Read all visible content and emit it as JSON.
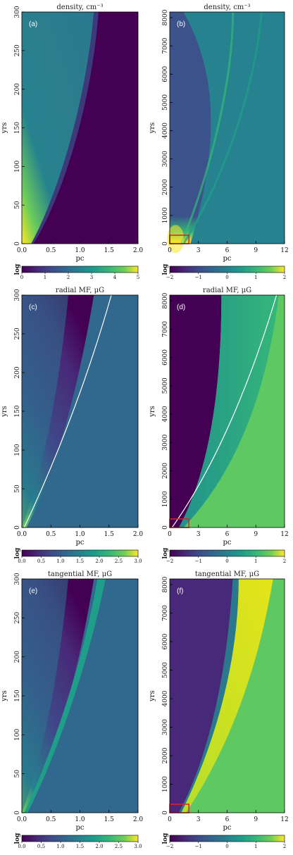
{
  "panels": [
    {
      "label": "(a)",
      "title": "density, cm⁻³",
      "xticks": [
        "0.0",
        "0.5",
        "1.0",
        "1.5",
        "2.0"
      ],
      "yticks": [
        "0",
        "50",
        "100",
        "150",
        "200",
        "250",
        "300"
      ],
      "xlabel": "pc",
      "ylabel": "yrs",
      "cb_label": "log",
      "cb_ticks": [
        "0",
        "1",
        "2",
        "3",
        "4",
        "5"
      ]
    },
    {
      "label": "(b)",
      "title": "density, cm⁻³",
      "xticks": [
        "0",
        "3",
        "6",
        "9",
        "12"
      ],
      "yticks": [
        "0",
        "1000",
        "2000",
        "3000",
        "4000",
        "5000",
        "6000",
        "7000",
        "8000"
      ],
      "xlabel": "pc",
      "ylabel": "yrs",
      "cb_label": "log",
      "cb_ticks": [
        "−2",
        "−1",
        "0",
        "1",
        "2"
      ]
    },
    {
      "label": "(c)",
      "title": "radial MF, μG",
      "xticks": [
        "0.0",
        "0.5",
        "1.0",
        "1.5",
        "2.0"
      ],
      "yticks": [
        "0",
        "50",
        "100",
        "150",
        "200",
        "250",
        "300"
      ],
      "xlabel": "pc",
      "ylabel": "yrs",
      "cb_label": "log",
      "cb_ticks": [
        "0.0",
        "0.5",
        "1.0",
        "1.5",
        "2.0",
        "2.5",
        "3.0"
      ]
    },
    {
      "label": "(d)",
      "title": "radial MF, μG",
      "xticks": [
        "0",
        "3",
        "6",
        "9",
        "12"
      ],
      "yticks": [
        "0",
        "1000",
        "2000",
        "3000",
        "4000",
        "5000",
        "6000",
        "7000",
        "8000"
      ],
      "xlabel": "pc",
      "ylabel": "yrs",
      "cb_label": "log",
      "cb_ticks": [
        "−2",
        "−1",
        "0",
        "1",
        "2"
      ]
    },
    {
      "label": "(e)",
      "title": "tangential MF, μG",
      "xticks": [
        "0.0",
        "0.5",
        "1.0",
        "1.5",
        "2.0"
      ],
      "yticks": [
        "0",
        "50",
        "100",
        "150",
        "200",
        "250",
        "300"
      ],
      "xlabel": "pc",
      "ylabel": "yrs",
      "cb_label": "log",
      "cb_ticks": [
        "0.0",
        "0.5",
        "1.0",
        "1.5",
        "2.0",
        "2.5",
        "3.0"
      ]
    },
    {
      "label": "(f)",
      "title": "tangential MF, μG",
      "xticks": [
        "0",
        "3",
        "6",
        "9",
        "12"
      ],
      "yticks": [
        "0",
        "1000",
        "2000",
        "3000",
        "4000",
        "5000",
        "6000",
        "7000",
        "8000"
      ],
      "xlabel": "pc",
      "ylabel": "yrs",
      "cb_label": "log",
      "cb_ticks": [
        "−2",
        "−1",
        "0",
        "1",
        "2"
      ]
    }
  ],
  "chart_data": [
    {
      "type": "heatmap",
      "panel": "(a)",
      "title": "density, cm⁻³",
      "xlabel": "pc",
      "ylabel": "yrs",
      "xlim": [
        0,
        2
      ],
      "ylim": [
        0,
        300
      ],
      "colorbar": {
        "label": "log",
        "range": [
          0,
          5
        ]
      }
    },
    {
      "type": "heatmap",
      "panel": "(b)",
      "title": "density, cm⁻³",
      "xlabel": "pc",
      "ylabel": "yrs",
      "xlim": [
        0,
        12
      ],
      "ylim": [
        0,
        8200
      ],
      "colorbar": {
        "label": "log",
        "range": [
          -2,
          2
        ]
      },
      "inset_box": {
        "x": [
          0,
          2
        ],
        "y": [
          0,
          300
        ],
        "color": "#d62728"
      }
    },
    {
      "type": "heatmap",
      "panel": "(c)",
      "title": "radial MF, μG",
      "xlabel": "pc",
      "ylabel": "yrs",
      "xlim": [
        0,
        2
      ],
      "ylim": [
        0,
        300
      ],
      "colorbar": {
        "label": "log",
        "range": [
          0,
          3
        ]
      }
    },
    {
      "type": "heatmap",
      "panel": "(d)",
      "title": "radial MF, μG",
      "xlabel": "pc",
      "ylabel": "yrs",
      "xlim": [
        0,
        12
      ],
      "ylim": [
        0,
        8200
      ],
      "colorbar": {
        "label": "log",
        "range": [
          -2,
          2
        ]
      },
      "inset_box": {
        "x": [
          0,
          2
        ],
        "y": [
          0,
          300
        ],
        "color": "#d62728"
      }
    },
    {
      "type": "heatmap",
      "panel": "(e)",
      "title": "tangential MF, μG",
      "xlabel": "pc",
      "ylabel": "yrs",
      "xlim": [
        0,
        2
      ],
      "ylim": [
        0,
        300
      ],
      "colorbar": {
        "label": "log",
        "range": [
          0,
          3
        ]
      }
    },
    {
      "type": "heatmap",
      "panel": "(f)",
      "title": "tangential MF, μG",
      "xlabel": "pc",
      "ylabel": "yrs",
      "xlim": [
        0,
        12
      ],
      "ylim": [
        0,
        8200
      ],
      "colorbar": {
        "label": "log",
        "range": [
          -2,
          2
        ]
      },
      "inset_box": {
        "x": [
          0,
          2
        ],
        "y": [
          0,
          300
        ],
        "color": "#d62728"
      }
    }
  ]
}
